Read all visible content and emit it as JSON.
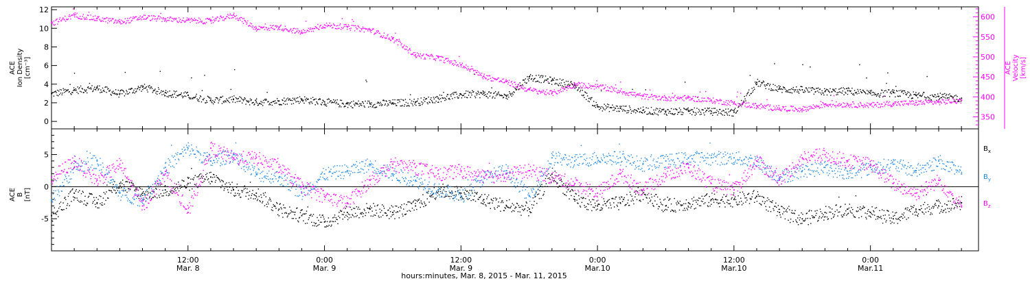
{
  "footer_label": "hours:minutes, Mar. 8, 2015 - Mar. 11, 2015",
  "x_ticks": [
    {
      "hour": 12,
      "l1": "12:00",
      "l2": "Mar. 8"
    },
    {
      "hour": 24,
      "l1": "0:00",
      "l2": "Mar. 9"
    },
    {
      "hour": 36,
      "l1": "12:00",
      "l2": "Mar. 9"
    },
    {
      "hour": 48,
      "l1": "0:00",
      "l2": "Mar.10"
    },
    {
      "hour": 60,
      "l1": "12:00",
      "l2": "Mar.10"
    },
    {
      "hour": 72,
      "l1": "0:00",
      "l2": "Mar.11"
    }
  ],
  "chart_data": [
    {
      "type": "scatter",
      "x_units": "hours since Mar. 8, 2015 00:00",
      "xlim": [
        0,
        81.5
      ],
      "left_axis": {
        "label_lines": [
          "ACE",
          "Ion Density",
          "[cm⁻³]"
        ],
        "ylim": [
          -0.8,
          12.3
        ],
        "ticks": [
          "0",
          "2",
          "4",
          "6",
          "8",
          "10",
          "12"
        ],
        "color": "#000000"
      },
      "right_axis": {
        "label_lines": [
          "ACE",
          "Velocity",
          "[km/s]"
        ],
        "ylim": [
          320,
          625
        ],
        "ticks": [
          "350",
          "400",
          "450",
          "500",
          "550",
          "600"
        ],
        "color": "#ff00ff"
      },
      "series": [
        {
          "color": "#000000",
          "axis": "left",
          "x": [
            0,
            2,
            4,
            6,
            8,
            10,
            12,
            14,
            16,
            18,
            20,
            22,
            24,
            26,
            28,
            30,
            32,
            34,
            36,
            38,
            40,
            42,
            44,
            46,
            48,
            50,
            52,
            54,
            56,
            58,
            60,
            62,
            64,
            66,
            68,
            70,
            72,
            74,
            76,
            78,
            80
          ],
          "y": [
            3.0,
            3.4,
            3.6,
            3.0,
            3.7,
            3.1,
            2.8,
            2.3,
            2.4,
            2.1,
            2.2,
            2.4,
            2.1,
            1.9,
            1.9,
            2.0,
            2.1,
            2.5,
            2.9,
            3.0,
            2.7,
            4.8,
            4.4,
            3.9,
            1.6,
            1.4,
            1.2,
            1.1,
            1.1,
            1.1,
            1.0,
            4.2,
            3.5,
            3.4,
            3.2,
            3.3,
            3.0,
            3.1,
            2.8,
            2.7,
            2.5
          ]
        },
        {
          "color": "#ff00ff",
          "axis": "right",
          "x": [
            0,
            2,
            4,
            6,
            8,
            10,
            12,
            14,
            16,
            18,
            20,
            22,
            24,
            26,
            28,
            30,
            32,
            34,
            36,
            38,
            40,
            42,
            44,
            46,
            48,
            50,
            52,
            54,
            56,
            58,
            60,
            62,
            64,
            66,
            68,
            70,
            72,
            74,
            76,
            78,
            80
          ],
          "y": [
            585,
            605,
            596,
            588,
            600,
            595,
            592,
            590,
            605,
            572,
            575,
            562,
            580,
            575,
            568,
            545,
            505,
            498,
            480,
            452,
            438,
            418,
            410,
            432,
            426,
            415,
            402,
            398,
            398,
            392,
            385,
            378,
            372,
            370,
            382,
            382,
            380,
            384,
            386,
            388,
            392
          ]
        }
      ]
    },
    {
      "type": "scatter",
      "x_units": "hours since Mar. 8, 2015 00:00",
      "xlim": [
        0,
        81.5
      ],
      "y_axis": {
        "label_lines": [
          "ACE",
          "B",
          "[nT]"
        ],
        "ylim": [
          -10,
          9
        ],
        "ticks": [
          "-5",
          "0",
          "5"
        ]
      },
      "zero_line": 0,
      "legend": {
        "position": "right",
        "items": [
          {
            "label": "B",
            "sub": "x",
            "color": "#000000"
          },
          {
            "label": "B",
            "sub": "y",
            "color": "#1e88e5"
          },
          {
            "label": "B",
            "sub": "z",
            "color": "#ff00ff"
          }
        ]
      },
      "series": [
        {
          "label": "B",
          "sub": "x",
          "color": "#000000",
          "x": [
            0,
            2,
            4,
            6,
            8,
            10,
            12,
            14,
            16,
            18,
            20,
            22,
            24,
            26,
            28,
            30,
            32,
            34,
            36,
            38,
            40,
            42,
            44,
            46,
            48,
            50,
            52,
            54,
            56,
            58,
            60,
            62,
            64,
            66,
            68,
            70,
            72,
            74,
            76,
            78,
            80
          ],
          "y": [
            -4.5,
            -1.0,
            -2.5,
            0.5,
            -1.0,
            -0.5,
            0.5,
            1.5,
            -0.5,
            -1.0,
            -3.5,
            -4.5,
            -5.5,
            -4.0,
            -3.5,
            -4.0,
            -3.0,
            -0.5,
            -1.0,
            -2.0,
            -3.0,
            -3.5,
            2.0,
            -2.0,
            -3.0,
            -2.5,
            -1.0,
            -3.0,
            -2.5,
            -2.0,
            -2.0,
            -1.5,
            -4.0,
            -5.0,
            -4.0,
            -3.5,
            -4.0,
            -5.0,
            -3.5,
            -3.0,
            -2.5
          ]
        },
        {
          "label": "B",
          "sub": "y",
          "color": "#1e88e5",
          "x": [
            0,
            2,
            4,
            6,
            8,
            10,
            12,
            14,
            16,
            18,
            20,
            22,
            24,
            26,
            28,
            30,
            32,
            34,
            36,
            38,
            40,
            42,
            44,
            46,
            48,
            50,
            52,
            54,
            56,
            58,
            60,
            62,
            64,
            66,
            68,
            70,
            72,
            74,
            76,
            78,
            80
          ],
          "y": [
            -2.0,
            3.0,
            4.0,
            -1.0,
            -2.0,
            3.0,
            6.0,
            4.0,
            5.0,
            2.0,
            1.5,
            -1.0,
            2.0,
            2.5,
            3.5,
            2.0,
            1.0,
            -0.5,
            -1.5,
            1.5,
            2.5,
            -1.5,
            4.5,
            4.0,
            4.5,
            4.5,
            3.5,
            4.0,
            4.5,
            4.5,
            4.5,
            4.0,
            1.5,
            2.5,
            3.0,
            2.0,
            3.0,
            3.5,
            2.5,
            4.0,
            2.0
          ]
        },
        {
          "label": "B",
          "sub": "z",
          "color": "#ff00ff",
          "x": [
            0,
            2,
            4,
            6,
            8,
            10,
            12,
            14,
            16,
            18,
            20,
            22,
            24,
            26,
            28,
            30,
            32,
            34,
            36,
            38,
            40,
            42,
            44,
            46,
            48,
            50,
            52,
            54,
            56,
            58,
            60,
            62,
            64,
            66,
            68,
            70,
            72,
            74,
            76,
            78,
            80
          ],
          "y": [
            1.5,
            4.0,
            1.0,
            3.5,
            -3.0,
            2.0,
            -4.0,
            6.0,
            4.5,
            4.5,
            3.0,
            0.0,
            -1.5,
            -2.5,
            1.0,
            3.5,
            3.0,
            2.0,
            2.5,
            1.5,
            2.0,
            2.5,
            1.5,
            0.5,
            -1.0,
            2.0,
            -0.5,
            2.0,
            3.0,
            0.5,
            -0.5,
            4.0,
            1.0,
            4.5,
            5.0,
            4.0,
            3.5,
            0.5,
            -1.0,
            1.0,
            -3.0
          ]
        }
      ]
    }
  ]
}
